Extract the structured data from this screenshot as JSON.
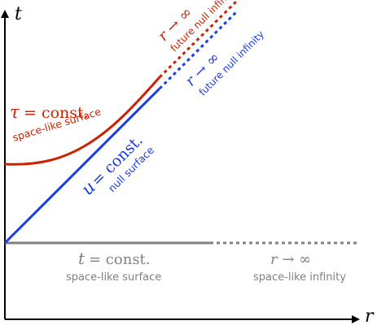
{
  "axes": {
    "t_label": "t",
    "r_label": "r"
  },
  "tau_surface": {
    "var": "τ",
    "eq": "= const.",
    "desc": "space-like surface",
    "color": "#cc2200"
  },
  "red_infinity": {
    "expr": "r → ∞",
    "desc": "future null infinity",
    "color": "#cc2200"
  },
  "blue_infinity": {
    "expr": "r → ∞",
    "desc": "future null infinity",
    "color": "#1a3de0"
  },
  "u_surface": {
    "var": "u",
    "eq": "= const.",
    "desc": "null surface",
    "color": "#1a3de0"
  },
  "t_surface": {
    "var": "t",
    "eq": "= const.",
    "desc": "space-like surface",
    "color": "#808080"
  },
  "spacelike_infinity": {
    "expr": "r → ∞",
    "desc": "space-like infinity",
    "color": "#808080"
  }
}
